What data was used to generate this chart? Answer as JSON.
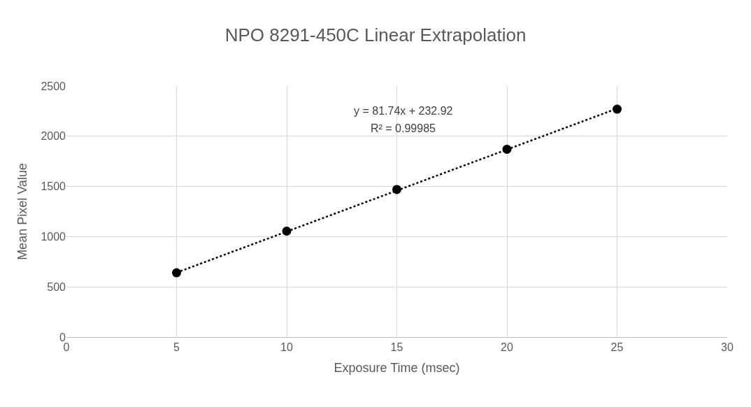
{
  "chart_data": {
    "type": "scatter",
    "title": "NPO 8291-450C Linear Extrapolation",
    "xlabel": "Exposure Time (msec)",
    "ylabel": "Mean Pixel Value",
    "series": [
      {
        "color": "#000000",
        "marker": "circle",
        "x": [
          5,
          10,
          15,
          20,
          25
        ],
        "values": [
          640,
          1055,
          1470,
          1870,
          2270
        ]
      },
      {
        "type": "line",
        "color": "#000000",
        "line_style": "dotted",
        "marker": "none",
        "x": [
          5,
          25
        ],
        "values": [
          642,
          2276
        ]
      }
    ],
    "annotations": [
      "y = 81.74x + 232.92",
      "R² = 0.99985"
    ],
    "xlim": [
      0,
      30
    ],
    "xticks": [
      0,
      5,
      10,
      15,
      20,
      25,
      30
    ],
    "ylim": [
      0,
      2500
    ],
    "yticks": [
      0,
      500,
      1000,
      1500,
      2000,
      2500
    ],
    "grid": true
  }
}
